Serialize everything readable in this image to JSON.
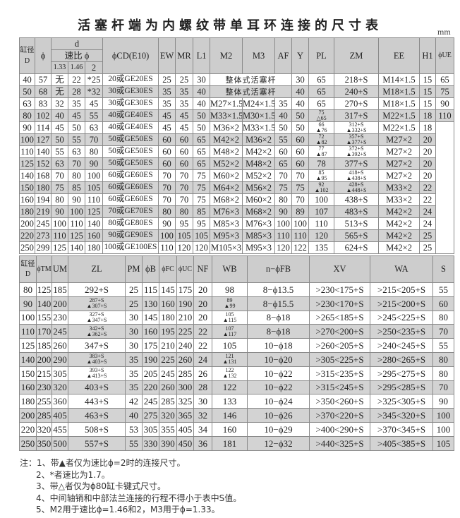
{
  "title": "活塞杆端为内螺纹带单耳环连接的尺寸表",
  "unit": "mm",
  "top_table": {
    "headers": {
      "bore": "缸径D",
      "phi": "ϕ",
      "d": "d",
      "ratio": "速比 ϕ",
      "r133": "1.33",
      "r146": "1.46",
      "r2": "2",
      "cd": "ϕCD(E10)",
      "ew": "EW",
      "mr": "MR",
      "l1": "L1",
      "m2": "M2",
      "m3": "M3",
      "af": "AF",
      "y": "Y",
      "pl": "PL",
      "zm": "ZM",
      "ee": "EE",
      "h1": "H1",
      "ue": "ϕUE"
    },
    "rows": [
      [
        "40",
        "57",
        "无",
        "22",
        "*25",
        "20或GE20ES",
        "25",
        "25",
        "30",
        {
          "text": "整体式活塞杆",
          "colspan": 3
        },
        "30",
        "65",
        "218+S",
        "M14×1.5",
        "15",
        "65"
      ],
      [
        "50",
        "68",
        "无",
        "28",
        "*32",
        "30或GE30ES",
        "35",
        "35",
        "40",
        {
          "text": "整体式活塞杆",
          "colspan": 3
        },
        "40",
        "65",
        "240+S",
        "M18×1.5",
        "15",
        "75"
      ],
      [
        "63",
        "83",
        "32",
        "35",
        "45",
        "30或GE30ES",
        "35",
        "35",
        "40",
        "M27×1.5",
        "M24×1.5",
        "35",
        "40",
        "65",
        "270+S",
        "M18×1.5",
        "15",
        "90"
      ],
      [
        "80",
        "102",
        "40",
        "45",
        "55",
        "40或GE40ES",
        "45",
        "45",
        "50",
        "M33×1.5",
        "M30×1.5",
        "40",
        "50",
        [
          "75",
          "△65"
        ],
        "317+S",
        "M22×1.5",
        "18",
        "110"
      ],
      [
        "90",
        "114",
        "45",
        "50",
        "63",
        "40或GE40ES",
        "45",
        "45",
        "50",
        "M36×2",
        "M33×1.5",
        "50",
        "50",
        [
          "66",
          "▲76"
        ],
        [
          "312+S",
          "▲332+S"
        ],
        "M22×1.5",
        "18",
        {
          "text": "",
          "rowspan": 11
        }
      ],
      [
        "100",
        "127",
        "50",
        "55",
        "70",
        "50或GE50ES",
        "60",
        "60",
        "65",
        "M42×2",
        "M36×2",
        "55",
        "60",
        [
          "72",
          "▲82"
        ],
        [
          "357+S",
          "▲377+S"
        ],
        "M27×2",
        "20"
      ],
      [
        "110",
        "140",
        "55",
        "63",
        "80",
        "50或GE50ES",
        "60",
        "60",
        "65",
        "M48×2",
        "M42×2",
        "60",
        "60",
        [
          "77",
          "▲87"
        ],
        [
          "372+S",
          "▲392+S"
        ],
        "M27×2",
        "20"
      ],
      [
        "125",
        "152",
        "63",
        "70",
        "90",
        "50或GE50ES",
        "60",
        "60",
        "65",
        "M52×2",
        "M48×2",
        "65",
        "60",
        "78",
        "377+S",
        "M27×2",
        "20"
      ],
      [
        "140",
        "168",
        "70",
        "80",
        "100",
        "60或GE60ES",
        "70",
        "70",
        "75",
        "M60×2",
        "M52×2",
        "70",
        "70",
        [
          "85",
          "▲95"
        ],
        [
          "418+S",
          "▲438+S"
        ],
        "M27×2",
        "20"
      ],
      [
        "150",
        "180",
        "75",
        "85",
        "105",
        "60或GE60ES",
        "70",
        "70",
        "75",
        "M64×2",
        "M56×2",
        "75",
        "75",
        [
          "92",
          "▲102"
        ],
        [
          "428+S",
          "▲448+S"
        ],
        "M33×2",
        "22"
      ],
      [
        "160",
        "194",
        "80",
        "90",
        "110",
        "60或GE60ES",
        "70",
        "70",
        "75",
        "M68×2",
        "M60×2",
        "80",
        "70",
        "100",
        "438+S",
        "M33×2",
        "22"
      ],
      [
        "180",
        "219",
        "90",
        "100",
        "125",
        "70或GE70ES",
        "80",
        "80",
        "85",
        "M76×3",
        "M68×2",
        "90",
        "89",
        "107",
        "483+S",
        "M42×2",
        "24"
      ],
      [
        "200",
        "245",
        "100",
        "110",
        "140",
        "80或GE80ES",
        "90",
        "95",
        "95",
        "M85×3",
        "M76×3",
        "100",
        "100",
        "110",
        "513+S",
        "M42×2",
        "24"
      ],
      [
        "220",
        "273",
        "110",
        "125",
        "160",
        "90或GE90ES",
        "100",
        "105",
        "105",
        "M95×3",
        "M85×3",
        "110",
        "110",
        "120",
        "565+S",
        "M42×2",
        "25"
      ],
      [
        "250",
        "299",
        "125",
        "140",
        "180",
        "100或GE100ES",
        "110",
        "120",
        "120",
        "M105×3",
        "M95×3",
        "120",
        "122",
        "135",
        "624+S",
        "M42×2",
        "25"
      ]
    ]
  },
  "bottom_table": {
    "headers": [
      "缸径D",
      "ϕTM",
      "UM",
      "ZL",
      "PM",
      "ϕB",
      "ϕFC",
      "ϕUC",
      "NF",
      "WB",
      "n−ϕFB",
      "XV",
      "WA",
      "S"
    ],
    "rows": [
      [
        "80",
        "125",
        "185",
        "292+S",
        "25",
        "115",
        "145",
        "175",
        "20",
        "98",
        "8−ϕ13.5",
        ">230<175+S",
        ">215<205+S",
        "55"
      ],
      [
        "90",
        "140",
        "200",
        [
          "287+S",
          "▲307+S"
        ],
        "25",
        "130",
        "160",
        "190",
        "20",
        [
          "89",
          "▲99"
        ],
        "8−ϕ15.5",
        ">230<170+S",
        ">215<200+S",
        "60"
      ],
      [
        "100",
        "155",
        "230",
        [
          "327+S",
          "▲347+S"
        ],
        "30",
        "145",
        "180",
        "210",
        "20",
        [
          "105",
          "▲115"
        ],
        "8−ϕ18",
        ">265<185+S",
        ">245<225+S",
        "80"
      ],
      [
        "110",
        "170",
        "245",
        [
          "342+S",
          "▲362+S"
        ],
        "30",
        "160",
        "195",
        "225",
        "22",
        [
          "107",
          "▲117"
        ],
        "8−ϕ18",
        ">270<200+S",
        ">250<235+S",
        "70"
      ],
      [
        "125",
        "185",
        "260",
        "347+S",
        "30",
        "175",
        "210",
        "240",
        "22",
        "105",
        "10−ϕ18",
        ">260<205+S",
        ">240<245+S",
        "55"
      ],
      [
        "140",
        "200",
        "290",
        [
          "383+S",
          "▲403+S"
        ],
        "35",
        "190",
        "225",
        "260",
        "24",
        [
          "121",
          "▲131"
        ],
        "10−ϕ20",
        ">305<225+S",
        ">280<265+S",
        "80"
      ],
      [
        "150",
        "215",
        "305",
        [
          "393+S",
          "▲413+S"
        ],
        "35",
        "205",
        "245",
        "285",
        "26",
        [
          "122",
          "▲132"
        ],
        "10−ϕ22",
        ">315<235+S",
        ">295<275+S",
        "80"
      ],
      [
        "160",
        "230",
        "320",
        "403+S",
        "35",
        "220",
        "260",
        "300",
        "28",
        "122",
        "10−ϕ22",
        ">315<245+S",
        ">295<285+S",
        "70"
      ],
      [
        "180",
        "255",
        "360",
        "443+S",
        "42",
        "245",
        "285",
        "325",
        "30",
        "133",
        "10−ϕ24",
        ">350<260+S",
        ">325<305+S",
        "90"
      ],
      [
        "200",
        "285",
        "405",
        "463+S",
        "40",
        "275",
        "320",
        "365",
        "32",
        "146",
        "10−ϕ26",
        ">370<220+S",
        ">345<320+S",
        "100"
      ],
      [
        "220",
        "320",
        "455",
        "508+S",
        "53",
        "305",
        "355",
        "405",
        "34",
        "160",
        "10−ϕ29",
        ">400<290+S",
        ">370<345+S",
        "100"
      ],
      [
        "250",
        "350",
        "500",
        "557+S",
        "55",
        "330",
        "390",
        "450",
        "36",
        "181",
        "12−ϕ32",
        ">440<325+S",
        ">405<385+S",
        "105"
      ]
    ]
  },
  "notes": [
    "注：1、带▲者仅为速比ϕ=2时的连接尺寸。",
    "2、*者速比为1.7。",
    "3、带△者仅为ϕ80缸卡键式尺寸。",
    "4、中间轴销和中部法兰连接的行程不得小于表中S值。",
    "5、M2用于速比ϕ=1.46和2，M3用于ϕ=1.33。"
  ]
}
